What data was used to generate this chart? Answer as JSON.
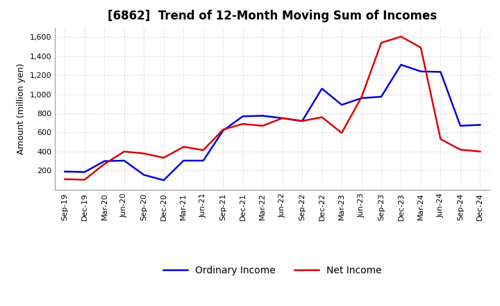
{
  "title": "[6862]  Trend of 12-Month Moving Sum of Incomes",
  "ylabel": "Amount (million yen)",
  "x_labels": [
    "Sep-19",
    "Dec-19",
    "Mar-20",
    "Jun-20",
    "Sep-20",
    "Dec-20",
    "Mar-21",
    "Jun-21",
    "Sep-21",
    "Dec-21",
    "Mar-22",
    "Jun-22",
    "Sep-22",
    "Dec-22",
    "Mar-23",
    "Jun-23",
    "Sep-23",
    "Dec-23",
    "Mar-24",
    "Jun-24",
    "Sep-24",
    "Dec-24"
  ],
  "ordinary_income": [
    190,
    185,
    300,
    305,
    155,
    100,
    305,
    305,
    620,
    770,
    775,
    750,
    720,
    1060,
    890,
    960,
    975,
    1310,
    1240,
    1235,
    670,
    680
  ],
  "net_income": [
    110,
    105,
    270,
    400,
    380,
    335,
    450,
    415,
    630,
    690,
    670,
    750,
    720,
    760,
    595,
    970,
    1540,
    1605,
    1490,
    530,
    420,
    400
  ],
  "ordinary_color": "#0000dd",
  "net_color": "#dd0000",
  "ylim": [
    0,
    1700
  ],
  "yticks": [
    200,
    400,
    600,
    800,
    1000,
    1200,
    1400,
    1600
  ],
  "ytick_labels": [
    "200",
    "400",
    "600",
    "800",
    "1,000",
    "1,200",
    "1,400",
    "1,600"
  ],
  "background_color": "#ffffff",
  "grid_color": "#bbbbbb",
  "line_width": 1.8,
  "title_fontsize": 12,
  "legend_fontsize": 10,
  "axis_tick_fontsize": 8,
  "ylabel_fontsize": 9
}
